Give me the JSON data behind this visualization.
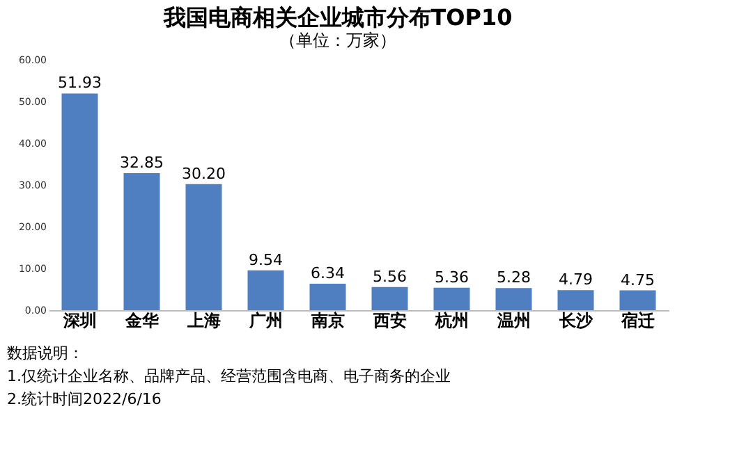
{
  "chart_data": {
    "type": "bar",
    "title": "我国电商相关企业城市分布TOP10",
    "subtitle": "（单位：万家）",
    "categories": [
      "深圳",
      "金华",
      "上海",
      "广州",
      "南京",
      "西安",
      "杭州",
      "温州",
      "长沙",
      "宿迁"
    ],
    "values": [
      51.93,
      32.85,
      30.2,
      9.54,
      6.34,
      5.56,
      5.36,
      5.28,
      4.79,
      4.75
    ],
    "value_labels": [
      "51.93",
      "32.85",
      "30.20",
      "9.54",
      "6.34",
      "5.56",
      "5.36",
      "5.28",
      "4.79",
      "4.75"
    ],
    "color": "#4f7fc0",
    "ylim": [
      0,
      60
    ],
    "yticks": [
      {
        "value": 0,
        "label": "0.00"
      },
      {
        "value": 10,
        "label": "10.00"
      },
      {
        "value": 20,
        "label": "20.00"
      },
      {
        "value": 30,
        "label": "30.00"
      },
      {
        "value": 40,
        "label": "40.00"
      },
      {
        "value": 50,
        "label": "50.00"
      },
      {
        "value": 60,
        "label": "60.00"
      }
    ],
    "grid": false,
    "annotations": [
      "数据说明：",
      "1.仅统计企业名称、品牌产品、经营范围含电商、电子商务的企业",
      "2.统计时间2022/6/16"
    ]
  }
}
